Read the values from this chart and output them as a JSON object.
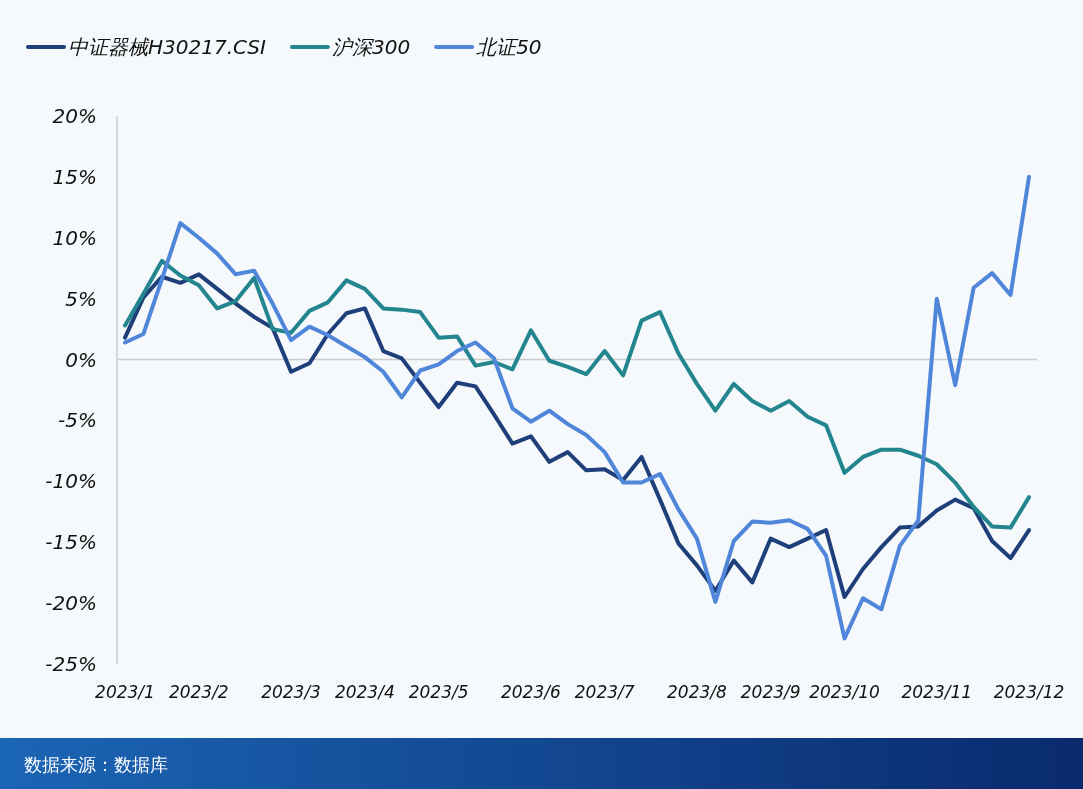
{
  "chart_data": {
    "type": "line",
    "categories": [
      "2023/1",
      null,
      null,
      null,
      "2023/2",
      null,
      null,
      null,
      null,
      "2023/3",
      null,
      null,
      null,
      "2023/4",
      null,
      null,
      null,
      "2023/5",
      null,
      null,
      null,
      null,
      "2023/6",
      null,
      null,
      null,
      "2023/7",
      null,
      null,
      null,
      null,
      "2023/8",
      null,
      null,
      null,
      "2023/9",
      null,
      null,
      null,
      "2023/10",
      null,
      null,
      null,
      null,
      "2023/11",
      null,
      null,
      null,
      null,
      "2023/12"
    ],
    "series": [
      {
        "name": "中证器械H30217.CSI",
        "color": "#1f3f7a",
        "values": [
          1.8,
          5.1,
          6.8,
          6.3,
          7.0,
          5.8,
          4.6,
          3.5,
          2.6,
          -1.0,
          -0.3,
          2.1,
          3.8,
          4.2,
          0.7,
          0.1,
          -1.9,
          -3.9,
          -1.9,
          -2.2,
          -4.5,
          -6.9,
          -6.3,
          -8.4,
          -7.6,
          -9.1,
          -9.0,
          -9.9,
          -8.0,
          -11.5,
          -15.1,
          -16.9,
          -19.0,
          -16.5,
          -18.3,
          -14.7,
          -15.4,
          -14.7,
          -14.0,
          -19.5,
          -17.2,
          -15.4,
          -13.8,
          -13.7,
          -12.4,
          -11.5,
          -12.2,
          -14.9,
          -16.3,
          -14.0
        ]
      },
      {
        "name": "沪深300",
        "color": "#23868f",
        "values": [
          2.8,
          5.4,
          8.1,
          6.9,
          6.1,
          4.2,
          4.8,
          6.7,
          2.5,
          2.2,
          4.0,
          4.7,
          6.5,
          5.8,
          4.2,
          4.1,
          3.9,
          1.8,
          1.9,
          -0.5,
          -0.2,
          -0.8,
          2.4,
          -0.1,
          -0.6,
          -1.2,
          0.7,
          -1.3,
          3.2,
          3.9,
          0.5,
          -2.0,
          -4.2,
          -2.0,
          -3.4,
          -4.2,
          -3.4,
          -4.7,
          -5.4,
          -9.3,
          -8.0,
          -7.4,
          -7.4,
          -7.9,
          -8.6,
          -10.1,
          -12.1,
          -13.7,
          -13.8,
          -11.3
        ]
      },
      {
        "name": "北证50",
        "color": "#4f86d9",
        "values": [
          1.4,
          2.1,
          6.6,
          11.2,
          10.0,
          8.7,
          7.0,
          7.3,
          4.6,
          1.6,
          2.7,
          2.0,
          1.1,
          0.2,
          -1.0,
          -3.1,
          -0.9,
          -0.4,
          0.7,
          1.4,
          0.1,
          -4.0,
          -5.1,
          -4.2,
          -5.3,
          -6.2,
          -7.6,
          -10.1,
          -10.1,
          -9.4,
          -12.3,
          -14.7,
          -19.9,
          -14.9,
          -13.3,
          -13.4,
          -13.2,
          -13.9,
          -16.1,
          -22.9,
          -19.6,
          -20.5,
          -15.3,
          -13.2,
          5.0,
          -2.1,
          5.9,
          7.1,
          5.3,
          15.0
        ]
      }
    ],
    "ylim": [
      -25,
      20
    ],
    "yticks": [
      {
        "value": -25,
        "label": "-25%"
      },
      {
        "value": -20,
        "label": "-20%"
      },
      {
        "value": -15,
        "label": "-15%"
      },
      {
        "value": -10,
        "label": "-10%"
      },
      {
        "value": -5,
        "label": "-5%"
      },
      {
        "value": 0,
        "label": "0%"
      },
      {
        "value": 5,
        "label": "5%"
      },
      {
        "value": 10,
        "label": "10%"
      },
      {
        "value": 15,
        "label": "15%"
      },
      {
        "value": 20,
        "label": "20%"
      }
    ],
    "ref_lines": [
      {
        "axis": "y",
        "value": 0,
        "color": "#cccccc"
      }
    ],
    "legend": "top left",
    "annotations": [
      "数据来源：数据库"
    ]
  }
}
